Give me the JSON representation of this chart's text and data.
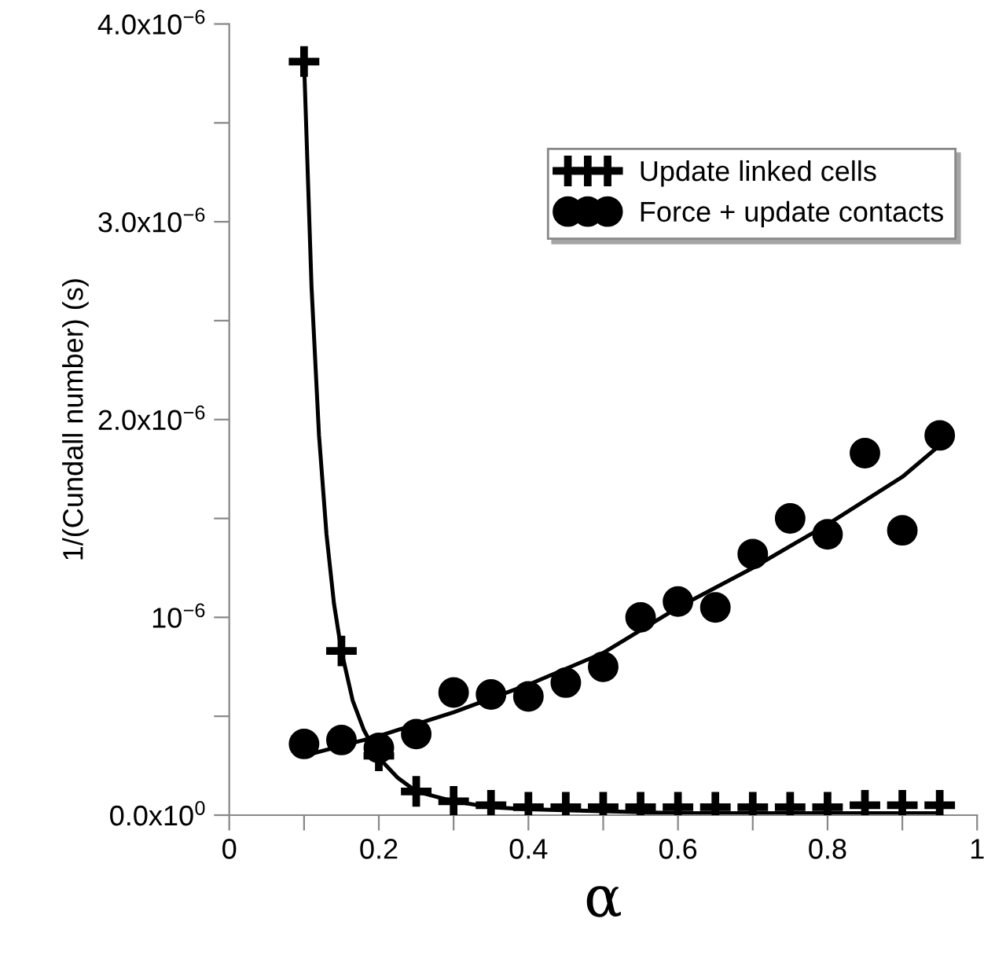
{
  "chart_data": {
    "type": "scatter",
    "xlabel": "α",
    "ylabel": "1/(Cundall number) (s)",
    "x": [
      0.1,
      0.15,
      0.2,
      0.25,
      0.3,
      0.35,
      0.4,
      0.45,
      0.5,
      0.55,
      0.6,
      0.65,
      0.7,
      0.75,
      0.8,
      0.85,
      0.9,
      0.95
    ],
    "series": [
      {
        "name": "Update linked cells",
        "color": "#000000",
        "marker": "cross",
        "values": [
          3.81e-06,
          8.3e-07,
          3e-07,
          1.2e-07,
          7e-08,
          5e-08,
          4e-08,
          4e-08,
          4e-08,
          4e-08,
          4e-08,
          4e-08,
          4e-08,
          4e-08,
          4e-08,
          5e-08,
          5e-08,
          5e-08
        ]
      },
      {
        "name": "Force + update contacts",
        "color": "#000000",
        "marker": "circle",
        "values": [
          3.6e-07,
          3.8e-07,
          3.4e-07,
          4.1e-07,
          6.2e-07,
          6.1e-07,
          6e-07,
          6.7e-07,
          7.5e-07,
          1e-06,
          1.08e-06,
          1.05e-06,
          1.32e-06,
          1.5e-06,
          1.42e-06,
          1.83e-06,
          1.44e-06,
          1.92e-06
        ]
      },
      {
        "type": "line",
        "color": "#000000",
        "marker": "none",
        "line_style": "solid",
        "x": [
          0.1,
          0.11,
          0.12,
          0.13,
          0.14,
          0.15,
          0.165,
          0.18,
          0.2,
          0.225,
          0.25,
          0.3,
          0.35,
          0.4,
          0.5,
          0.6,
          0.7,
          0.8,
          0.95
        ],
        "values": [
          3.81e-06,
          2.67e-06,
          1.92e-06,
          1.42e-06,
          1.07e-06,
          8.3e-07,
          5.8e-07,
          4.3e-07,
          2.9e-07,
          1.9e-07,
          1.2e-07,
          7e-08,
          4e-08,
          3e-08,
          2e-08,
          1e-08,
          1e-08,
          1e-08,
          1e-08
        ]
      },
      {
        "type": "line",
        "color": "#000000",
        "marker": "none",
        "line_style": "solid",
        "x": [
          0.1,
          0.2,
          0.3,
          0.4,
          0.5,
          0.6,
          0.7,
          0.8,
          0.9,
          0.95
        ],
        "values": [
          3e-07,
          4e-07,
          5.2e-07,
          6.6e-07,
          8.2e-07,
          1.05e-06,
          1.25e-06,
          1.47e-06,
          1.71e-06,
          1.87e-06
        ]
      }
    ],
    "xlim": [
      0,
      1
    ],
    "ylim": [
      0,
      4e-06
    ],
    "xticks": [
      0,
      {
        "value": 0.1,
        "label": null
      },
      0.2,
      {
        "value": 0.3,
        "label": null
      },
      0.4,
      {
        "value": 0.5,
        "label": null
      },
      0.6,
      {
        "value": 0.7,
        "label": null
      },
      0.8,
      {
        "value": 0.9,
        "label": null
      },
      1
    ],
    "yticks": [
      {
        "value": 0,
        "label": "0.0x10$^{0}$"
      },
      {
        "value": 5e-07,
        "label": null
      },
      {
        "value": 1e-06,
        "label": "10$^{−6}$"
      },
      {
        "value": 1.5e-06,
        "label": null
      },
      {
        "value": 2e-06,
        "label": "2.0x10$^{−6}$"
      },
      {
        "value": 2.5e-06,
        "label": null
      },
      {
        "value": 3e-06,
        "label": "3.0x10$^{−6}$"
      },
      {
        "value": 3.5e-06,
        "label": null
      },
      {
        "value": 4e-06,
        "label": "4.0x10$^{−6}$"
      }
    ],
    "grid": false,
    "legend": "top right"
  }
}
